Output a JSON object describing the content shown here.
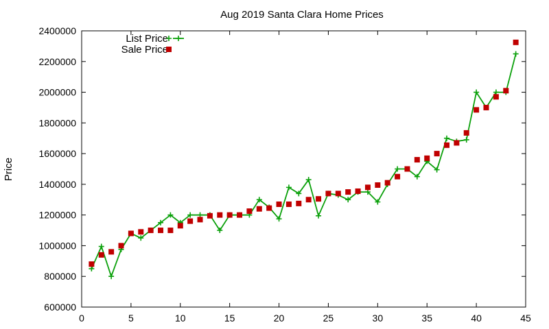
{
  "chart_data": {
    "type": "line",
    "title": "Aug 2019 Santa Clara Home Prices",
    "xlabel": "",
    "ylabel": "Price",
    "xlim": [
      0,
      45
    ],
    "ylim": [
      600000,
      2400000
    ],
    "xticks": [
      0,
      5,
      10,
      15,
      20,
      25,
      30,
      35,
      40,
      45
    ],
    "yticks": [
      600000,
      800000,
      1000000,
      1200000,
      1400000,
      1600000,
      1800000,
      2000000,
      2200000,
      2400000
    ],
    "grid": false,
    "legend_position": "top-left",
    "series": [
      {
        "name": "List Price",
        "style": "line-plus",
        "color": "#0aa00a",
        "x": [
          1,
          2,
          3,
          4,
          5,
          6,
          7,
          8,
          9,
          10,
          11,
          12,
          13,
          14,
          15,
          16,
          17,
          18,
          19,
          20,
          21,
          22,
          23,
          24,
          25,
          26,
          27,
          28,
          29,
          30,
          31,
          32,
          33,
          34,
          35,
          36,
          37,
          38,
          39,
          40,
          41,
          42,
          43,
          44
        ],
        "values": [
          850000,
          995000,
          800000,
          975000,
          1080000,
          1050000,
          1100000,
          1150000,
          1200000,
          1150000,
          1200000,
          1200000,
          1200000,
          1100000,
          1200000,
          1200000,
          1200000,
          1300000,
          1250000,
          1175000,
          1380000,
          1340000,
          1430000,
          1195000,
          1340000,
          1330000,
          1300000,
          1350000,
          1350000,
          1285000,
          1400000,
          1500000,
          1500000,
          1450000,
          1550000,
          1495000,
          1700000,
          1680000,
          1690000,
          2000000,
          1900000,
          2000000,
          2000000,
          2250000
        ]
      },
      {
        "name": "Sale Price",
        "style": "square",
        "color": "#c00000",
        "x": [
          1,
          2,
          3,
          4,
          5,
          6,
          7,
          8,
          9,
          10,
          11,
          12,
          13,
          14,
          15,
          16,
          17,
          18,
          19,
          20,
          21,
          22,
          23,
          24,
          25,
          26,
          27,
          28,
          29,
          30,
          31,
          32,
          33,
          34,
          35,
          36,
          37,
          38,
          39,
          40,
          41,
          42,
          43,
          44
        ],
        "values": [
          880000,
          940000,
          960000,
          1000000,
          1080000,
          1090000,
          1100000,
          1100000,
          1100000,
          1130000,
          1160000,
          1170000,
          1195000,
          1200000,
          1200000,
          1200000,
          1225000,
          1240000,
          1245000,
          1270000,
          1270000,
          1275000,
          1300000,
          1305000,
          1340000,
          1340000,
          1350000,
          1355000,
          1380000,
          1395000,
          1410000,
          1450000,
          1500000,
          1560000,
          1570000,
          1600000,
          1655000,
          1670000,
          1735000,
          1885000,
          1900000,
          1970000,
          2010000,
          2325000
        ]
      }
    ]
  }
}
